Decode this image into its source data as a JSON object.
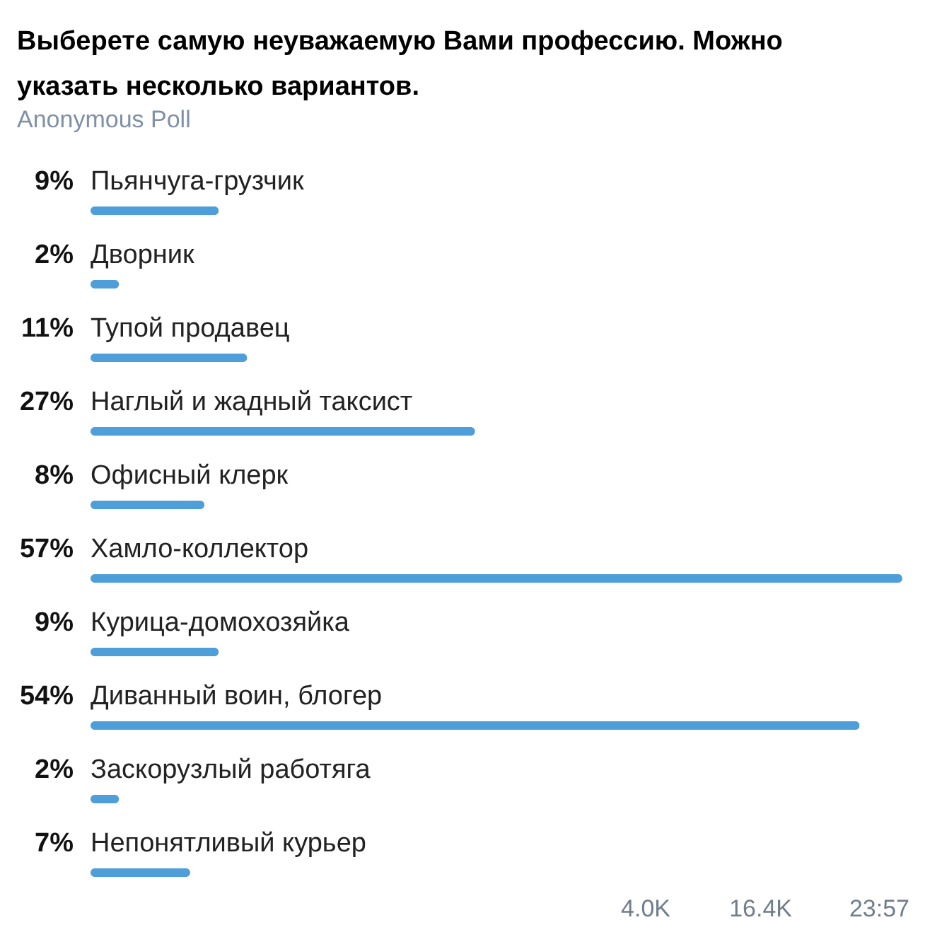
{
  "chart_data": {
    "type": "bar",
    "orientation": "horizontal",
    "title": "Выберете самую неуважаемую Вами профессию. Можно указать несколько вариантов.",
    "subtitle": "Anonymous Poll",
    "categories": [
      "Пьянчуга-грузчик",
      "Дворник",
      "Тупой продавец",
      "Наглый и жадный таксист",
      "Офисный клерк",
      "Хамло-коллектор",
      "Курица-домохозяйка",
      "Диванный воин, блогер",
      "Заскорузлый работяга",
      "Непонятливый курьер"
    ],
    "values": [
      9,
      2,
      11,
      27,
      8,
      57,
      9,
      54,
      2,
      7
    ],
    "value_labels": [
      "9%",
      "2%",
      "11%",
      "27%",
      "8%",
      "57%",
      "9%",
      "54%",
      "2%",
      "7%"
    ],
    "color": "#4e9ed9",
    "annotations": [
      "4.0K",
      "16.4K",
      "23:57"
    ]
  }
}
